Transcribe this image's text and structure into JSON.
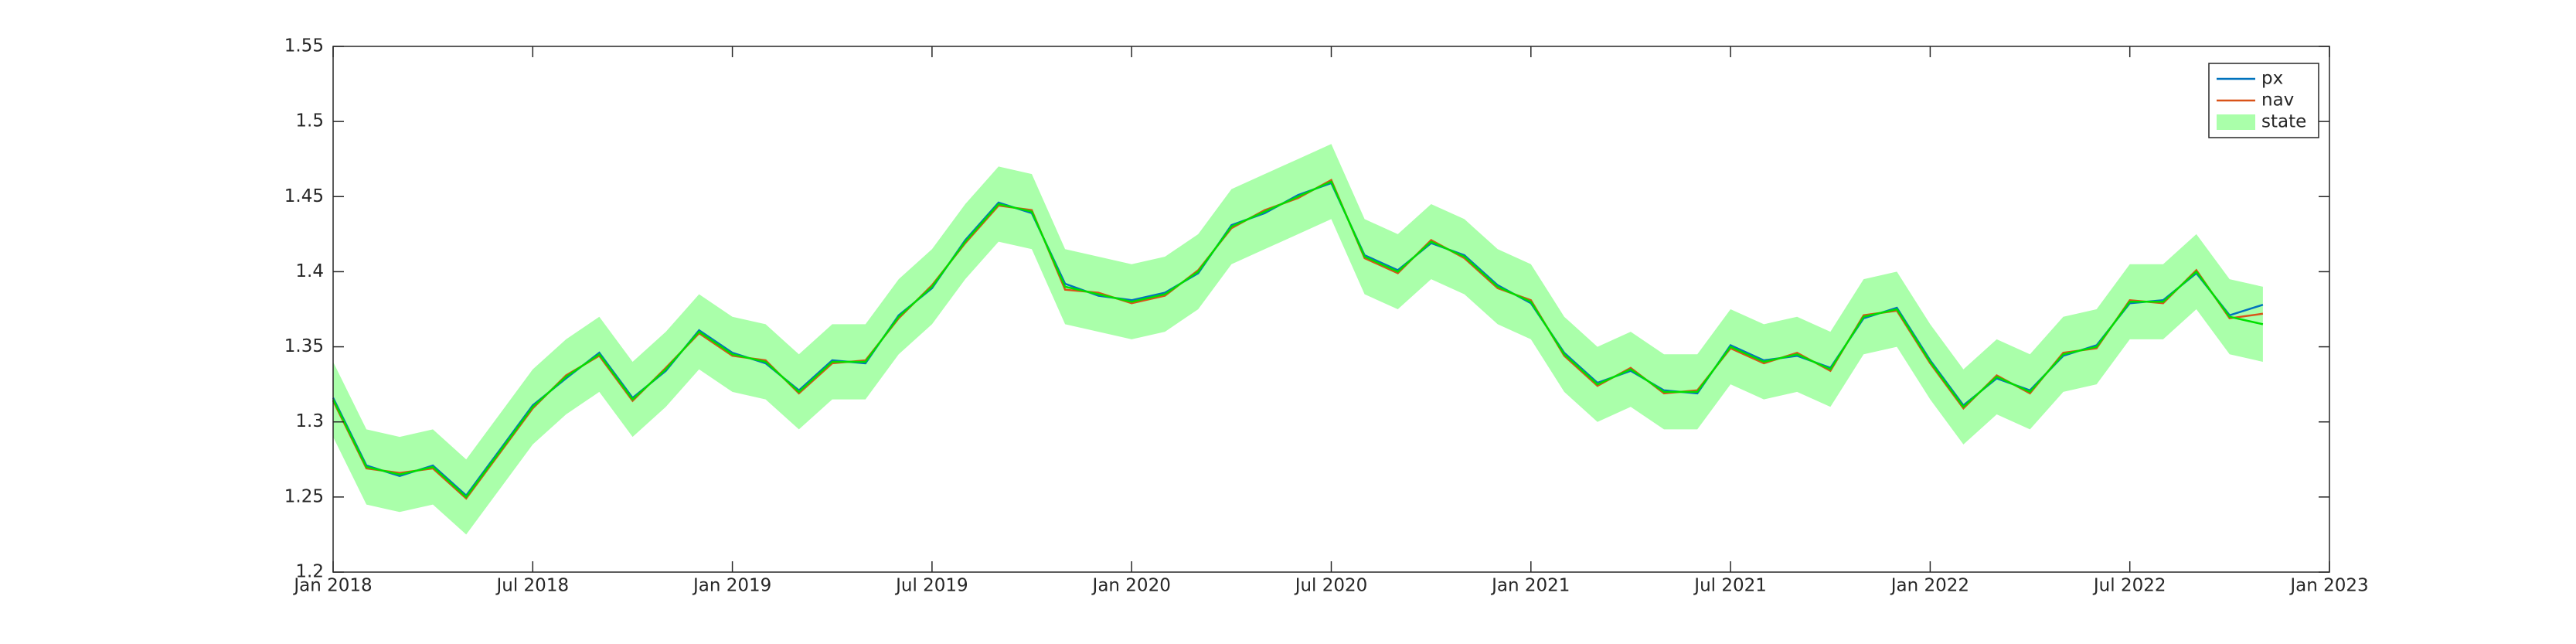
{
  "chart_data": {
    "type": "line",
    "x": [
      "2018-01",
      "2018-02",
      "2018-03",
      "2018-04",
      "2018-05",
      "2018-06",
      "2018-07",
      "2018-08",
      "2018-09",
      "2018-10",
      "2018-11",
      "2018-12",
      "2019-01",
      "2019-02",
      "2019-03",
      "2019-04",
      "2019-05",
      "2019-06",
      "2019-07",
      "2019-08",
      "2019-09",
      "2019-10",
      "2019-11",
      "2019-12",
      "2020-01",
      "2020-02",
      "2020-03",
      "2020-04",
      "2020-05",
      "2020-06",
      "2020-07",
      "2020-08",
      "2020-09",
      "2020-10",
      "2020-11",
      "2020-12",
      "2021-01",
      "2021-02",
      "2021-03",
      "2021-04",
      "2021-05",
      "2021-06",
      "2021-07",
      "2021-08",
      "2021-09",
      "2021-10",
      "2021-11",
      "2021-12",
      "2022-01",
      "2022-02",
      "2022-03",
      "2022-04",
      "2022-05",
      "2022-06",
      "2022-07",
      "2022-08",
      "2022-09",
      "2022-10",
      "2022-11"
    ],
    "series": [
      {
        "name": "px",
        "color": "#0072bd",
        "values": [
          1.316,
          1.271,
          1.264,
          1.271,
          1.251,
          1.281,
          1.311,
          1.329,
          1.346,
          1.316,
          1.334,
          1.361,
          1.346,
          1.339,
          1.321,
          1.341,
          1.339,
          1.371,
          1.389,
          1.421,
          1.446,
          1.439,
          1.392,
          1.384,
          1.381,
          1.386,
          1.399,
          1.431,
          1.439,
          1.451,
          1.459,
          1.411,
          1.401,
          1.419,
          1.411,
          1.391,
          1.379,
          1.346,
          1.326,
          1.334,
          1.321,
          1.319,
          1.351,
          1.341,
          1.344,
          1.336,
          1.369,
          1.376,
          1.341,
          1.311,
          1.329,
          1.321,
          1.344,
          1.351,
          1.379,
          1.381,
          1.399,
          1.371,
          1.378
        ]
      },
      {
        "name": "nav",
        "color": "#d95319",
        "values": [
          1.314,
          1.269,
          1.266,
          1.269,
          1.249,
          1.279,
          1.309,
          1.331,
          1.344,
          1.314,
          1.336,
          1.359,
          1.344,
          1.341,
          1.319,
          1.339,
          1.341,
          1.369,
          1.391,
          1.419,
          1.444,
          1.441,
          1.388,
          1.386,
          1.379,
          1.384,
          1.401,
          1.429,
          1.441,
          1.449,
          1.461,
          1.409,
          1.399,
          1.421,
          1.409,
          1.389,
          1.381,
          1.344,
          1.324,
          1.336,
          1.319,
          1.321,
          1.349,
          1.339,
          1.346,
          1.334,
          1.371,
          1.374,
          1.339,
          1.309,
          1.331,
          1.319,
          1.346,
          1.349,
          1.381,
          1.379,
          1.401,
          1.369,
          1.372
        ]
      },
      {
        "name": "state",
        "color": "#00e000",
        "band_color": "#aaffaa",
        "values": [
          1.315,
          1.27,
          1.265,
          1.27,
          1.25,
          1.28,
          1.31,
          1.33,
          1.345,
          1.315,
          1.335,
          1.36,
          1.345,
          1.34,
          1.32,
          1.34,
          1.34,
          1.37,
          1.39,
          1.42,
          1.445,
          1.44,
          1.39,
          1.385,
          1.38,
          1.385,
          1.4,
          1.43,
          1.44,
          1.45,
          1.46,
          1.41,
          1.4,
          1.42,
          1.41,
          1.39,
          1.38,
          1.345,
          1.325,
          1.335,
          1.32,
          1.32,
          1.35,
          1.34,
          1.345,
          1.335,
          1.37,
          1.375,
          1.34,
          1.31,
          1.33,
          1.32,
          1.345,
          1.35,
          1.38,
          1.38,
          1.4,
          1.37,
          1.365
        ],
        "lower": [
          1.29,
          1.245,
          1.24,
          1.245,
          1.225,
          1.255,
          1.285,
          1.305,
          1.32,
          1.29,
          1.31,
          1.335,
          1.32,
          1.315,
          1.295,
          1.315,
          1.315,
          1.345,
          1.365,
          1.395,
          1.42,
          1.415,
          1.365,
          1.36,
          1.355,
          1.36,
          1.375,
          1.405,
          1.415,
          1.425,
          1.435,
          1.385,
          1.375,
          1.395,
          1.385,
          1.365,
          1.355,
          1.32,
          1.3,
          1.31,
          1.295,
          1.295,
          1.325,
          1.315,
          1.32,
          1.31,
          1.345,
          1.35,
          1.315,
          1.285,
          1.305,
          1.295,
          1.32,
          1.325,
          1.355,
          1.355,
          1.375,
          1.345,
          1.34
        ],
        "upper": [
          1.34,
          1.295,
          1.29,
          1.295,
          1.275,
          1.305,
          1.335,
          1.355,
          1.37,
          1.34,
          1.36,
          1.385,
          1.37,
          1.365,
          1.345,
          1.365,
          1.365,
          1.395,
          1.415,
          1.445,
          1.47,
          1.465,
          1.415,
          1.41,
          1.405,
          1.41,
          1.425,
          1.455,
          1.465,
          1.475,
          1.485,
          1.435,
          1.425,
          1.445,
          1.435,
          1.415,
          1.405,
          1.37,
          1.35,
          1.36,
          1.345,
          1.345,
          1.375,
          1.365,
          1.37,
          1.36,
          1.395,
          1.4,
          1.365,
          1.335,
          1.355,
          1.345,
          1.37,
          1.375,
          1.405,
          1.405,
          1.425,
          1.395,
          1.39
        ]
      }
    ],
    "xlim": [
      "2018-01",
      "2023-01"
    ],
    "xticks": [
      {
        "value": "2018-01",
        "label": "Jan 2018"
      },
      {
        "value": "2018-07",
        "label": "Jul 2018"
      },
      {
        "value": "2019-01",
        "label": "Jan 2019"
      },
      {
        "value": "2019-07",
        "label": "Jul 2019"
      },
      {
        "value": "2020-01",
        "label": "Jan 2020"
      },
      {
        "value": "2020-07",
        "label": "Jul 2020"
      },
      {
        "value": "2021-01",
        "label": "Jan 2021"
      },
      {
        "value": "2021-07",
        "label": "Jul 2021"
      },
      {
        "value": "2022-01",
        "label": "Jan 2022"
      },
      {
        "value": "2022-07",
        "label": "Jul 2022"
      },
      {
        "value": "2023-01",
        "label": "Jan 2023"
      }
    ],
    "ylim": [
      1.2,
      1.55
    ],
    "yticks": [
      1.2,
      1.25,
      1.3,
      1.35,
      1.4,
      1.45,
      1.5,
      1.55
    ],
    "legend": "upper right"
  }
}
